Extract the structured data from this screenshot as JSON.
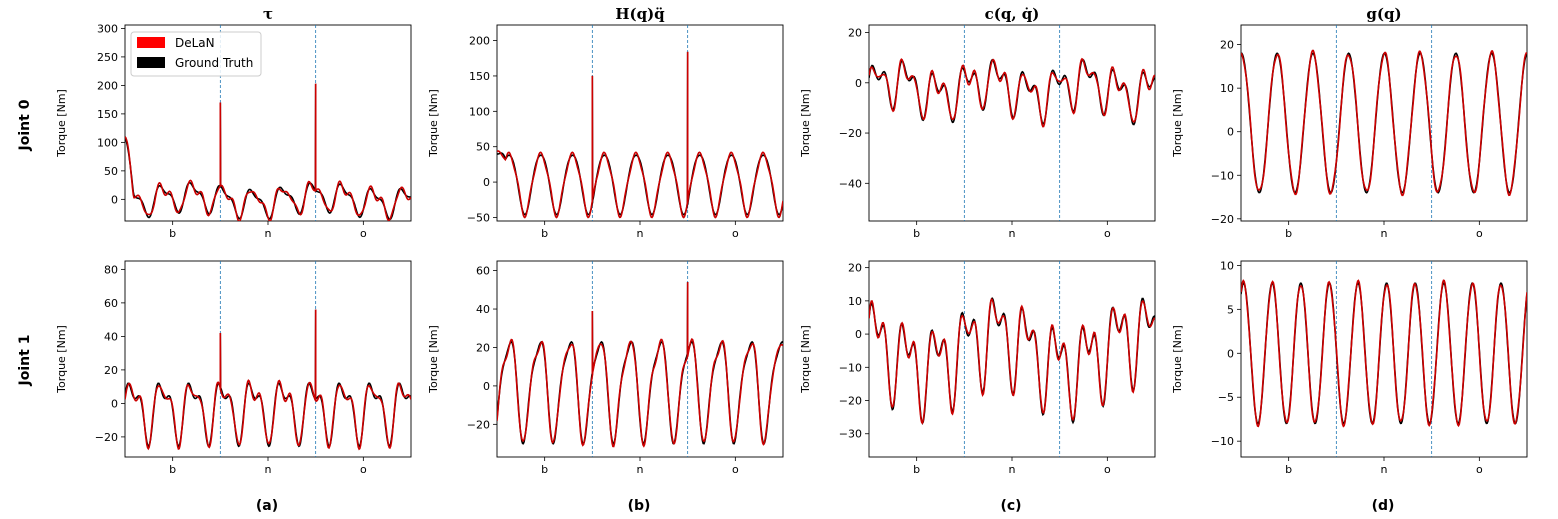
{
  "colors": {
    "delan": "#ff0000",
    "delan_line": "#cc0000",
    "ground_truth": "#000000",
    "divider": "#1f77b4"
  },
  "legend": {
    "entries": [
      "DeLaN",
      "Ground Truth"
    ],
    "placement": "upper-left"
  },
  "row_labels": [
    "Joint 0",
    "Joint 1"
  ],
  "panel_labels": [
    "(a)",
    "(b)",
    "(c)",
    "(d)"
  ],
  "chart_data": [
    {
      "type": "line",
      "id": "j0-tau",
      "title": "τ",
      "ylabel": "Torque [Nm]",
      "ylim": [
        -38,
        306
      ],
      "yticks": [
        0,
        50,
        100,
        150,
        200,
        250,
        300
      ],
      "yticklabels": [
        "0",
        "50",
        "100",
        "150",
        "200",
        "250",
        "300"
      ],
      "xticklabels": [
        "b",
        "n",
        "o"
      ],
      "series": [
        {
          "name": "DeLaN"
        },
        {
          "name": "Ground Truth"
        }
      ],
      "spikes": [
        170,
        203
      ],
      "start_value": 110
    },
    {
      "type": "line",
      "id": "j0-inertia",
      "title": "H(q)q̈",
      "ylabel": "Torque [Nm]",
      "ylim": [
        -55,
        222
      ],
      "yticks": [
        -50,
        0,
        50,
        100,
        150,
        200
      ],
      "yticklabels": [
        "−50",
        "0",
        "50",
        "100",
        "150",
        "200"
      ],
      "xticklabels": [
        "b",
        "n",
        "o"
      ],
      "series": [
        {
          "name": "DeLaN"
        },
        {
          "name": "Ground Truth"
        }
      ],
      "spikes": [
        150,
        184
      ],
      "start_value": 40
    },
    {
      "type": "line",
      "id": "j0-coriolis",
      "title": "c(q, q̇)",
      "ylabel": "Torque [Nm]",
      "ylim": [
        -55,
        23
      ],
      "yticks": [
        -40,
        -20,
        0,
        20
      ],
      "yticklabels": [
        "−40",
        "−20",
        "0",
        "20"
      ],
      "xticklabels": [
        "b",
        "n",
        "o"
      ],
      "series": [
        {
          "name": "DeLaN"
        },
        {
          "name": "Ground Truth"
        }
      ]
    },
    {
      "type": "line",
      "id": "j0-gravity",
      "title": "g(q)",
      "ylabel": "Torque [Nm]",
      "ylim": [
        -20.5,
        24.5
      ],
      "yticks": [
        -20,
        -10,
        0,
        10,
        20
      ],
      "yticklabels": [
        "−20",
        "−10",
        "0",
        "10",
        "20"
      ],
      "xticklabels": [
        "b",
        "n",
        "o"
      ],
      "series": [
        {
          "name": "DeLaN"
        },
        {
          "name": "Ground Truth"
        }
      ]
    },
    {
      "type": "line",
      "id": "j1-tau",
      "title": "",
      "ylabel": "Torque [Nm]",
      "ylim": [
        -32,
        85
      ],
      "yticks": [
        -20,
        0,
        20,
        40,
        60,
        80
      ],
      "yticklabels": [
        "−20",
        "0",
        "20",
        "40",
        "60",
        "80"
      ],
      "xticklabels": [
        "b",
        "n",
        "o"
      ],
      "series": [
        {
          "name": "DeLaN"
        },
        {
          "name": "Ground Truth"
        }
      ],
      "spikes": [
        42,
        56
      ]
    },
    {
      "type": "line",
      "id": "j1-inertia",
      "title": "",
      "ylabel": "Torque [Nm]",
      "ylim": [
        -37,
        65
      ],
      "yticks": [
        -20,
        0,
        20,
        40,
        60
      ],
      "yticklabels": [
        "−20",
        "0",
        "20",
        "40",
        "60"
      ],
      "xticklabels": [
        "b",
        "n",
        "o"
      ],
      "series": [
        {
          "name": "DeLaN"
        },
        {
          "name": "Ground Truth"
        }
      ],
      "spikes": [
        39,
        54
      ]
    },
    {
      "type": "line",
      "id": "j1-coriolis",
      "title": "",
      "ylabel": "Torque [Nm]",
      "ylim": [
        -37,
        22
      ],
      "yticks": [
        -30,
        -20,
        -10,
        0,
        10,
        20
      ],
      "yticklabels": [
        "−30",
        "−20",
        "−10",
        "0",
        "10",
        "20"
      ],
      "xticklabels": [
        "b",
        "n",
        "o"
      ],
      "series": [
        {
          "name": "DeLaN"
        },
        {
          "name": "Ground Truth"
        }
      ]
    },
    {
      "type": "line",
      "id": "j1-gravity",
      "title": "",
      "ylabel": "Torque [Nm]",
      "ylim": [
        -11.8,
        10.5
      ],
      "yticks": [
        -10,
        -5,
        0,
        5,
        10
      ],
      "yticklabels": [
        "−10",
        "−5",
        "0",
        "5",
        "10"
      ],
      "xticklabels": [
        "b",
        "n",
        "o"
      ],
      "series": [
        {
          "name": "DeLaN"
        },
        {
          "name": "Ground Truth"
        }
      ]
    }
  ]
}
